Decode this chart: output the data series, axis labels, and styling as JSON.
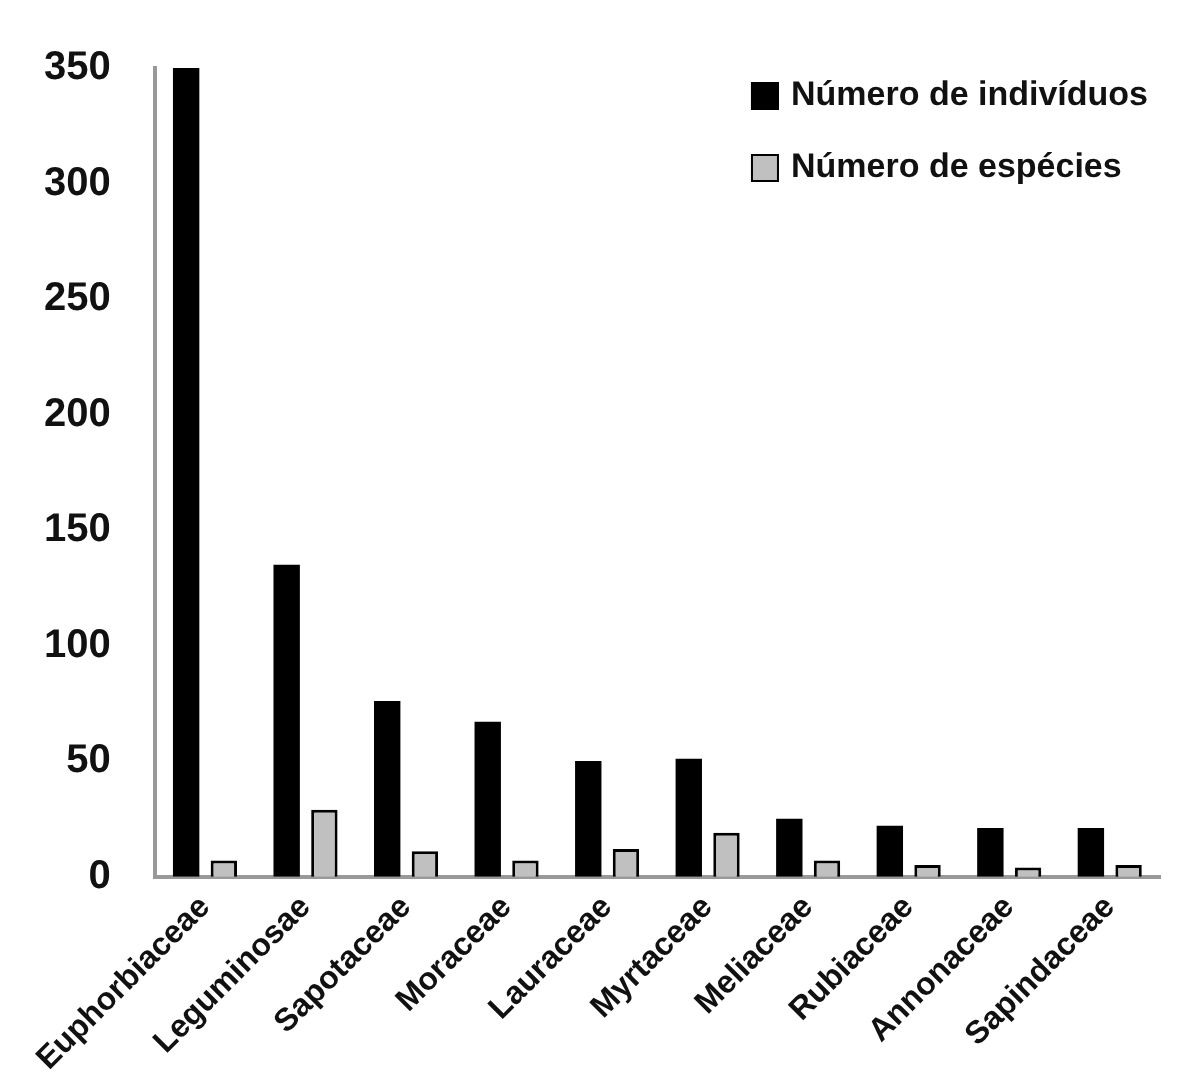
{
  "chart_data": {
    "type": "bar",
    "categories": [
      "Euphorbiaceae",
      "Leguminosae",
      "Sapotaceae",
      "Moraceae",
      "Lauraceae",
      "Myrtaceae",
      "Meliaceae",
      "Rubiaceae",
      "Annonaceae",
      "Sapindaceae"
    ],
    "series": [
      {
        "name": "Número de indivíduos",
        "color": "#000000",
        "values": [
          350,
          135,
          76,
          67,
          50,
          51,
          25,
          22,
          21,
          21
        ]
      },
      {
        "name": "Número de espécies",
        "color": "#c0c0c0",
        "values": [
          7,
          29,
          11,
          7,
          12,
          19,
          7,
          5,
          4,
          5
        ]
      }
    ],
    "ylim": [
      0,
      350
    ],
    "yticks": [
      0,
      50,
      100,
      150,
      200,
      250,
      300,
      350
    ],
    "grid": false,
    "legend": "top right"
  }
}
